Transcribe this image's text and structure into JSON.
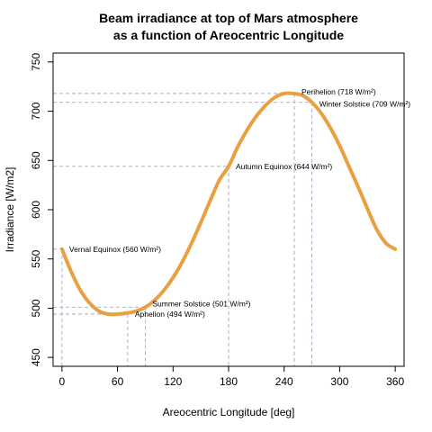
{
  "chart_data": {
    "type": "line",
    "title": [
      "Beam irradiance at top of Mars atmosphere",
      "as a function of Areocentric Longitude"
    ],
    "xlabel": "Areocentric Longitude [deg]",
    "ylabel": "Irradiance [W/m2]",
    "xlim": [
      -9.6,
      369.6
    ],
    "ylim": [
      441,
      759
    ],
    "xticks": [
      0,
      60,
      120,
      180,
      240,
      300,
      360
    ],
    "yticks": [
      450,
      500,
      550,
      600,
      650,
      700,
      750
    ],
    "grid": false,
    "line_color": "#e8a040",
    "series": [
      {
        "x": [
          0,
          10,
          20,
          30,
          40,
          50,
          60,
          70,
          80,
          90,
          100,
          110,
          120,
          130,
          140,
          150,
          160,
          170,
          180,
          190,
          200,
          210,
          220,
          230,
          240,
          250,
          260,
          270,
          280,
          290,
          300,
          310,
          320,
          330,
          340,
          350,
          360
        ],
        "y": [
          560,
          537,
          518,
          505,
          497,
          494,
          494,
          495,
          497,
          501,
          508,
          518,
          531,
          547,
          566,
          587,
          609,
          630,
          644,
          664,
          681,
          695,
          706,
          714,
          718,
          718,
          716,
          709,
          698,
          683,
          665,
          644,
          623,
          601,
          580,
          566,
          560
        ]
      }
    ],
    "annotations": [
      {
        "label": "Vernal Equinox (560 W/m²)",
        "x": 0,
        "y": 560
      },
      {
        "label": "Aphelion (494 W/m²)",
        "x": 71,
        "y": 494
      },
      {
        "label": "Summer Solstice (501 W/m²)",
        "x": 90,
        "y": 501
      },
      {
        "label": "Autumn Equinox (644 W/m²)",
        "x": 180,
        "y": 644
      },
      {
        "label": "Perihelion (718 W/m²)",
        "x": 251,
        "y": 718
      },
      {
        "label": "Winter Solstice (709 W/m²)",
        "x": 270,
        "y": 709
      }
    ]
  }
}
